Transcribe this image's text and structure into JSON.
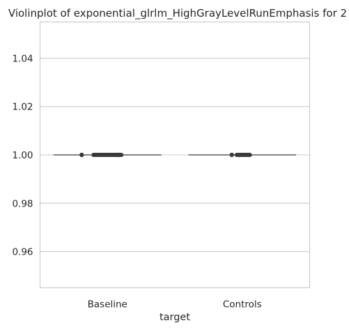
{
  "chart_data": {
    "type": "violin",
    "title": "Violinplot of exponential_glrlm_HighGrayLevelRunEmphasis for 2",
    "xlabel": "target",
    "ylabel": "",
    "categories": [
      "Baseline",
      "Controls"
    ],
    "ylim": [
      0.945,
      1.055
    ],
    "yticks": [
      0.96,
      0.98,
      1.0,
      1.02,
      1.04
    ],
    "ytick_labels": [
      "0.96",
      "0.98",
      "1.00",
      "1.02",
      "1.04"
    ],
    "grid": true,
    "series": [
      {
        "category": "Baseline",
        "value": 1.0
      },
      {
        "category": "Controls",
        "value": 1.0
      }
    ],
    "colors": {
      "line": "#5a5a5a",
      "box": "#3b3b3b",
      "grid": "#cccccc",
      "frame": "#cccccc"
    }
  }
}
